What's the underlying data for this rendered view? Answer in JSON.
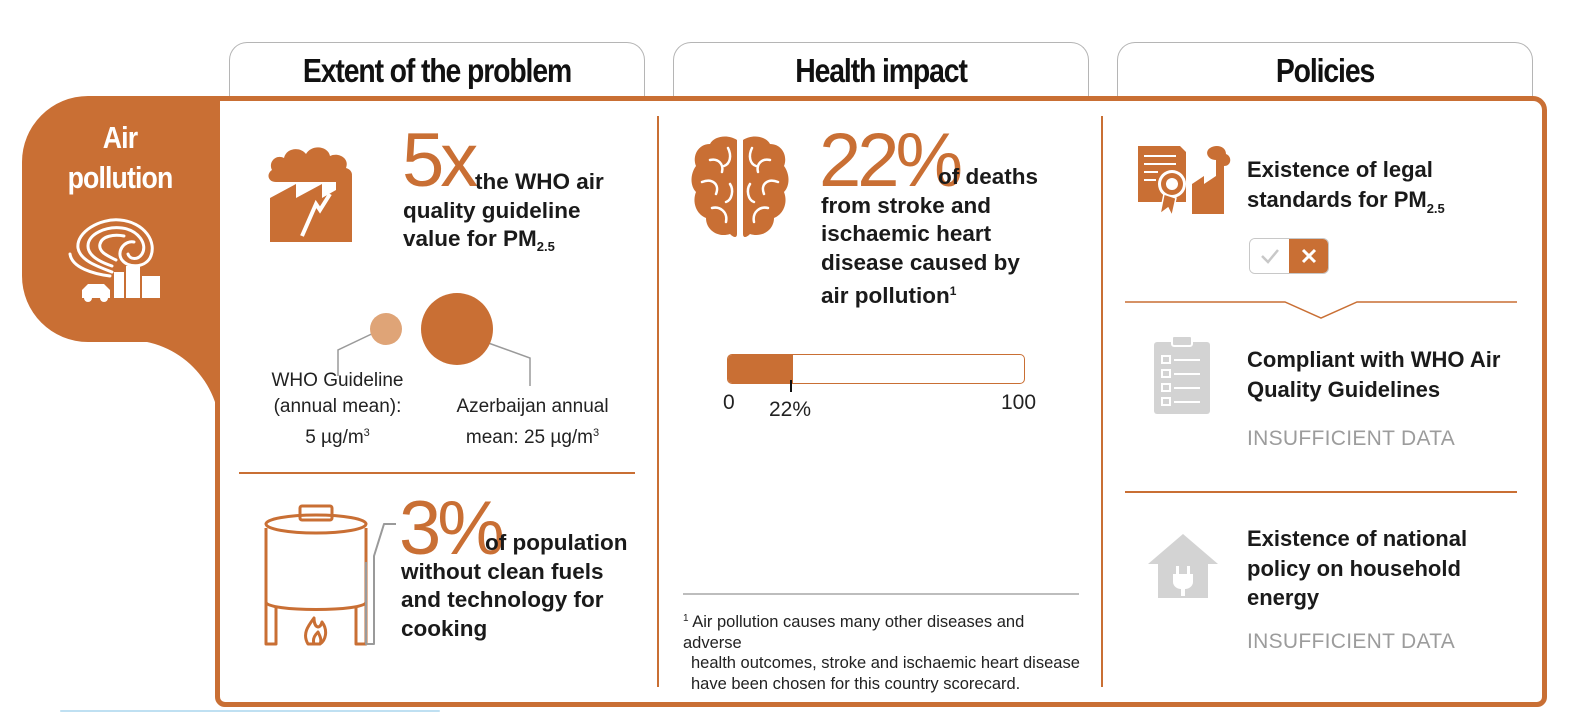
{
  "tabs": {
    "extent": "Extent of the problem",
    "health": "Health impact",
    "policies": "Policies"
  },
  "sidebar": {
    "title_line1": "Air",
    "title_line2": "pollution"
  },
  "extent": {
    "multiplier_big": "5x",
    "multiplier_text1": "the WHO air",
    "multiplier_text2": "quality guideline",
    "multiplier_text3": "value for PM",
    "pm_sub": "2.5",
    "who_label_1": "WHO Guideline",
    "who_label_2": "(annual mean):",
    "who_label_3": "5 µg/m",
    "who_label_sup": "3",
    "country_label_1": "Azerbaijan annual",
    "country_label_2": "mean: 25 µg/m",
    "country_label_sup": "3",
    "fuels_big": "3%",
    "fuels_text1": "of population",
    "fuels_text2": "without clean fuels",
    "fuels_text3": "and technology for",
    "fuels_text4": "cooking"
  },
  "health": {
    "big": "22%",
    "text1": "of deaths",
    "text2": "from stroke and",
    "text3": "ischaemic heart",
    "text4": "disease caused by",
    "text5": "air pollution",
    "text5_sup": "1",
    "bar_value_pct": 22,
    "bar_min": "0",
    "bar_max": "100",
    "bar_label": "22%",
    "footnote_mark": "1",
    "footnote_1": "Air pollution causes many other diseases and adverse",
    "footnote_2": "health outcomes, stroke and ischaemic heart disease",
    "footnote_3": "have been chosen for this country scorecard."
  },
  "policies": {
    "legal_1": "Existence of legal",
    "legal_2": "standards for PM",
    "legal_sub": "2.5",
    "legal_status": "no",
    "compliant_1": "Compliant with WHO Air",
    "compliant_2": "Quality Guidelines",
    "compliant_status": "INSUFFICIENT DATA",
    "household_1": "Existence of national",
    "household_2": "policy on household",
    "household_3": "energy",
    "household_status": "INSUFFICIENT DATA"
  },
  "colors": {
    "accent": "#c96f34",
    "accent_light": "#dfa477",
    "grey_icon": "#d3d3d3",
    "grey_text": "#9c9c9c"
  },
  "icons": [
    "air-pollution-icon",
    "factory-icon",
    "cooking-pot-icon",
    "brain-icon",
    "certificate-factory-icon",
    "check-icon",
    "cross-icon",
    "clipboard-icon",
    "house-plug-icon"
  ]
}
